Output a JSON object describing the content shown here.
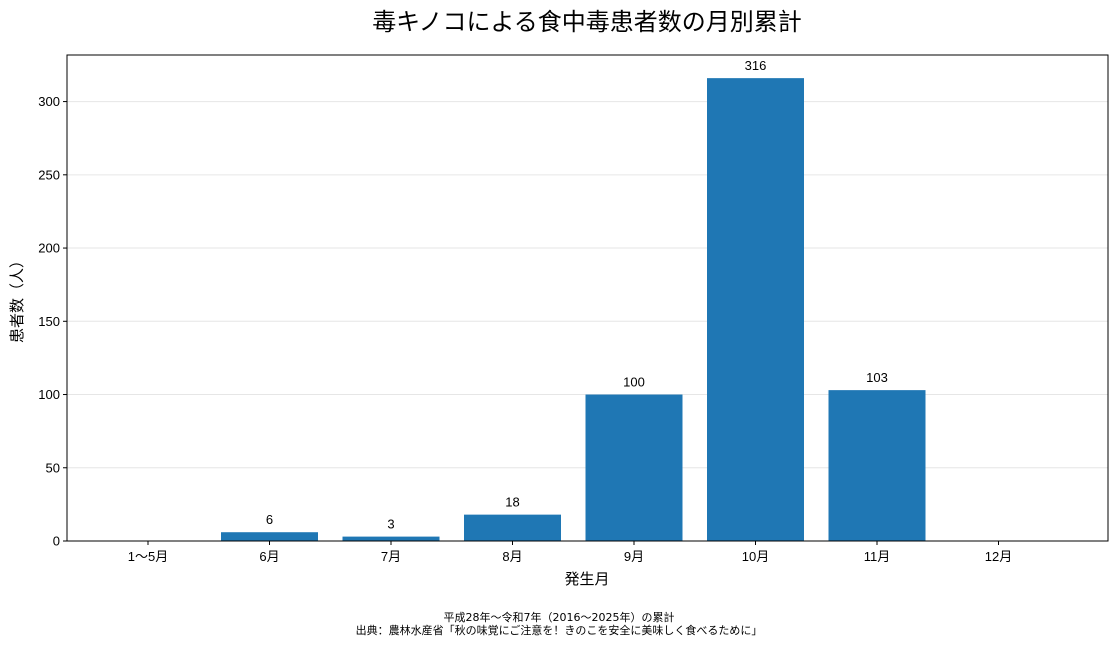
{
  "chart_data": {
    "type": "bar",
    "title": "毒キノコによる食中毒患者数の月別累計",
    "xlabel": "発生月",
    "ylabel": "患者数（人）",
    "categories": [
      "1〜5月",
      "6月",
      "7月",
      "8月",
      "9月",
      "10月",
      "11月",
      "12月"
    ],
    "values": [
      0,
      6,
      3,
      18,
      100,
      316,
      103,
      0
    ],
    "data_labels": [
      "",
      "6",
      "3",
      "18",
      "100",
      "316",
      "103",
      ""
    ],
    "ylim": [
      0,
      331.8
    ],
    "yticks": [
      0,
      50,
      100,
      150,
      200,
      250,
      300
    ],
    "grid": "horizontal",
    "bar_color": "#1f77b4"
  },
  "footnote": {
    "line1": "平成28年〜令和7年（2016〜2025年）の累計",
    "line2": "出典：農林水産省「秋の味覚にご注意を！きのこを安全に美味しく食べるために」"
  }
}
